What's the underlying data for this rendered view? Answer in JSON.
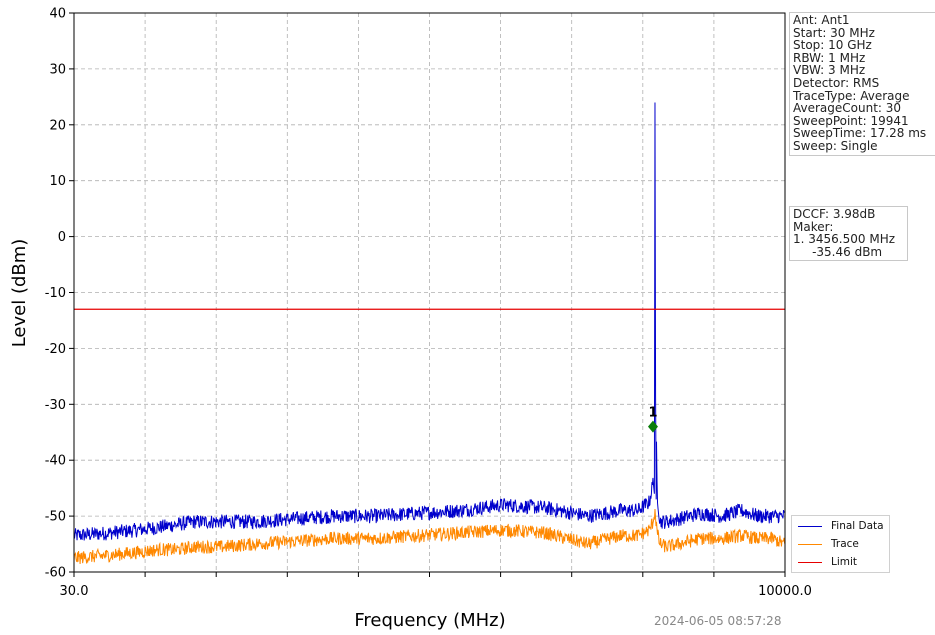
{
  "chart_data": {
    "type": "line",
    "xlabel": "Frequency (MHz)",
    "ylabel": "Level (dBm)",
    "x_scale": "log",
    "xlim": [
      30.0,
      10000.0
    ],
    "ylim": [
      -60,
      40
    ],
    "x_tick_labels": [
      "30.0",
      "10000.0"
    ],
    "y_ticks": [
      40,
      30,
      20,
      10,
      0,
      -10,
      -20,
      -30,
      -40,
      -50,
      -60
    ],
    "grid": true,
    "legend_placement": "lower-right-outside",
    "series": [
      {
        "name": "Final Data",
        "color": "#0000cc",
        "x": [
          30,
          40,
          50,
          60,
          70,
          80,
          100,
          130,
          180,
          250,
          350,
          500,
          700,
          1000,
          1400,
          2000,
          2600,
          3000,
          3300,
          3400,
          3430,
          3456.5,
          3480,
          3520,
          3600,
          3800,
          4200,
          5000,
          6000,
          7000,
          8000,
          9000,
          10000
        ],
        "y": [
          -53.5,
          -53,
          -52.5,
          -52,
          -51.5,
          -51,
          -51,
          -51,
          -50.5,
          -50,
          -50,
          -49.5,
          -49,
          -48,
          -48.5,
          -50,
          -49,
          -49,
          -47.5,
          -44,
          -44,
          24,
          -28.5,
          -46,
          -51,
          -51,
          -50.5,
          -49.5,
          -50,
          -49,
          -50,
          -50,
          -50
        ]
      },
      {
        "name": "Trace",
        "color": "#ff8800",
        "x": [
          30,
          40,
          50,
          60,
          70,
          80,
          100,
          130,
          180,
          250,
          350,
          500,
          700,
          1000,
          1400,
          2000,
          2600,
          3000,
          3300,
          3400,
          3456.5,
          3520,
          3600,
          3800,
          4200,
          5000,
          6000,
          7000,
          8000,
          9000,
          10000
        ],
        "y": [
          -57.5,
          -57,
          -56.5,
          -56,
          -56,
          -55.5,
          -55.5,
          -55,
          -54.5,
          -54,
          -54,
          -53.5,
          -53,
          -52.5,
          -53,
          -55,
          -53.5,
          -53.5,
          -52.5,
          -51,
          -49,
          -53,
          -55,
          -55.5,
          -55,
          -54,
          -54,
          -53.5,
          -54,
          -54,
          -55
        ]
      },
      {
        "name": "Limit",
        "color": "#e60000",
        "x": [
          30,
          10000
        ],
        "y": [
          -13,
          -13
        ]
      }
    ],
    "markers": [
      {
        "label": "1",
        "x": 3456.5,
        "y": -34
      }
    ]
  },
  "settings": {
    "lines": [
      "Ant: Ant1",
      "Start: 30 MHz",
      "Stop: 10 GHz",
      "RBW: 1 MHz",
      "VBW: 3 MHz",
      "Detector: RMS",
      "TraceType: Average",
      "AverageCount: 30",
      "SweepPoint: 19941",
      "SweepTime: 17.28 ms",
      "Sweep: Single"
    ]
  },
  "dccf": {
    "lines": [
      "DCCF: 3.98dB",
      "Maker:",
      "1. 3456.500 MHz",
      "     -35.46 dBm"
    ]
  },
  "legend": {
    "final_label": "Final Data",
    "trace_label": "Trace",
    "limit_label": "Limit"
  },
  "timestamp": "2024-06-05 08:57:28"
}
